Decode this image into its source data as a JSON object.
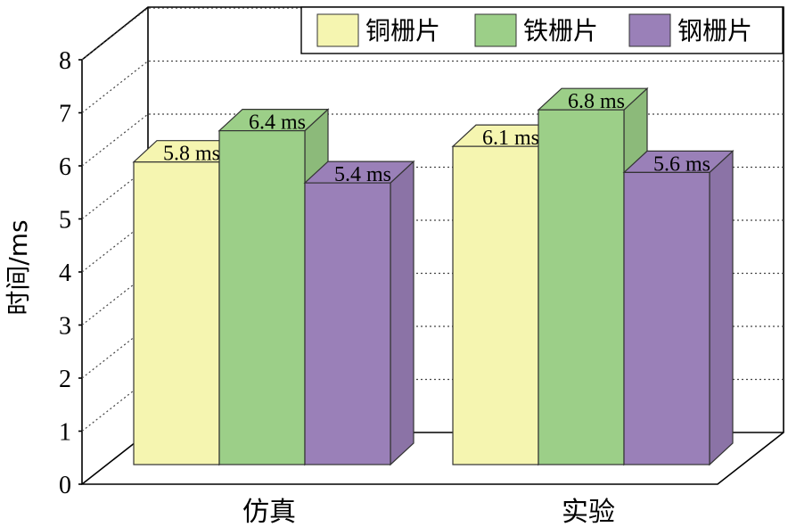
{
  "chart_data": {
    "type": "bar",
    "ylabel": "时间/ms",
    "ylim": [
      0,
      8
    ],
    "yticks": [
      0,
      1,
      2,
      3,
      4,
      5,
      6,
      7,
      8
    ],
    "grid": true,
    "legend_position": "top-right",
    "categories": [
      "仿真",
      "实验"
    ],
    "series": [
      {
        "name": "铜栅片",
        "values": [
          5.8,
          6.1
        ],
        "labels": [
          "5.8 ms",
          "6.1 ms"
        ],
        "color": "#f5f5b0"
      },
      {
        "name": "铁栅片",
        "values": [
          6.4,
          6.8
        ],
        "labels": [
          "6.4 ms",
          "6.8 ms"
        ],
        "color": "#9ccf88"
      },
      {
        "name": "钢栅片",
        "values": [
          5.4,
          5.6
        ],
        "labels": [
          "5.4 ms",
          "5.6 ms"
        ],
        "color": "#9a80b8"
      }
    ]
  }
}
